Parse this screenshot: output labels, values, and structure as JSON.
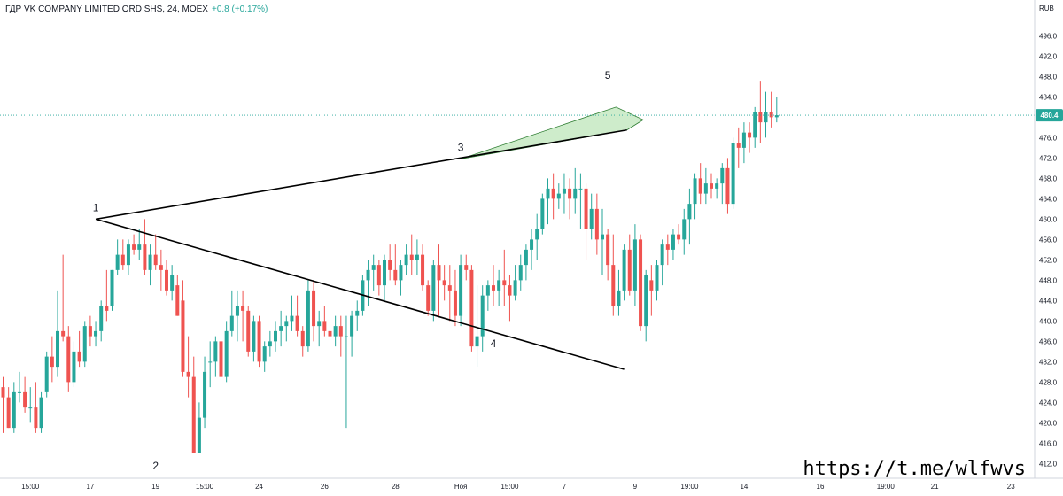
{
  "header": {
    "symbol": "ГДР VK COMPANY LIMITED ORD SHS, 24, MOEX",
    "change": "+0.8 (+0.17%)"
  },
  "watermark": "https://t.me/wlfwvs",
  "colors": {
    "up": "#26a69a",
    "down": "#ef5350",
    "price_line": "#26a69a",
    "triangle_fill": "#b9e4b5",
    "lines": "#000000"
  },
  "chart_data": {
    "type": "candlestick",
    "currency": "RUB",
    "last_price": "480.4",
    "ylim": [
      410.5,
      500.5
    ],
    "y_ticks": [
      "496.0",
      "492.0",
      "488.0",
      "484.0",
      "480.0",
      "476.0",
      "472.0",
      "468.0",
      "464.0",
      "460.0",
      "456.0",
      "452.0",
      "448.0",
      "444.0",
      "440.0",
      "436.0",
      "432.0",
      "428.0",
      "424.0",
      "420.0",
      "416.0",
      "412.0"
    ],
    "x_ticks": [
      {
        "label": "15:00",
        "bar": 5
      },
      {
        "label": "17",
        "bar": 16
      },
      {
        "label": "19",
        "bar": 28
      },
      {
        "label": "15:00",
        "bar": 37
      },
      {
        "label": "24",
        "bar": 47
      },
      {
        "label": "26",
        "bar": 59
      },
      {
        "label": "28",
        "bar": 72
      },
      {
        "label": "Ноя",
        "bar": 84
      },
      {
        "label": "15:00",
        "bar": 93
      },
      {
        "label": "7",
        "bar": 103
      },
      {
        "label": "9",
        "bar": 116
      },
      {
        "label": "19:00",
        "bar": 126
      },
      {
        "label": "14",
        "bar": 136
      },
      {
        "label": "16",
        "bar": 150
      },
      {
        "label": "19:00",
        "bar": 162
      },
      {
        "label": "21",
        "bar": 171
      },
      {
        "label": "23",
        "bar": 185
      }
    ],
    "candles_ohlc": [
      [
        427,
        429,
        418,
        425
      ],
      [
        425,
        427,
        419,
        419
      ],
      [
        419,
        428,
        418,
        426
      ],
      [
        426,
        430,
        424,
        426
      ],
      [
        426,
        429,
        422,
        423
      ],
      [
        423,
        427,
        420,
        423
      ],
      [
        423,
        428,
        418,
        419
      ],
      [
        419,
        426,
        418,
        425
      ],
      [
        426,
        434,
        425,
        433
      ],
      [
        433,
        437,
        428,
        431
      ],
      [
        431,
        446,
        429,
        438
      ],
      [
        438,
        453,
        436,
        437
      ],
      [
        437,
        439,
        426,
        428
      ],
      [
        428,
        436,
        427,
        434
      ],
      [
        434,
        438,
        431,
        432
      ],
      [
        432,
        440,
        431,
        439
      ],
      [
        439,
        441,
        435,
        437
      ],
      [
        437,
        440,
        435,
        438
      ],
      [
        438,
        444,
        436,
        443
      ],
      [
        443,
        450,
        440,
        442
      ],
      [
        443,
        450,
        442,
        450
      ],
      [
        450,
        456,
        449,
        453
      ],
      [
        453,
        456,
        450,
        451
      ],
      [
        451,
        456,
        449,
        455
      ],
      [
        455,
        457,
        453,
        454
      ],
      [
        454,
        458,
        452,
        455
      ],
      [
        455,
        460,
        449,
        450
      ],
      [
        450,
        455,
        447,
        453
      ],
      [
        453,
        457,
        450,
        451
      ],
      [
        451,
        454,
        446,
        450
      ],
      [
        450,
        452,
        445,
        446
      ],
      [
        446,
        451,
        444,
        449
      ],
      [
        447,
        449,
        441,
        441
      ],
      [
        444,
        448,
        429,
        430
      ],
      [
        430,
        437,
        425,
        429
      ],
      [
        429,
        433,
        414,
        414
      ],
      [
        414,
        424,
        414,
        421
      ],
      [
        421,
        433,
        419,
        430
      ],
      [
        432,
        436,
        427,
        432
      ],
      [
        432,
        437,
        429,
        436
      ],
      [
        436,
        438,
        429,
        429
      ],
      [
        429,
        440,
        428,
        438
      ],
      [
        438,
        446,
        437,
        441
      ],
      [
        441,
        446,
        436,
        443
      ],
      [
        443,
        446,
        436,
        442
      ],
      [
        442,
        443,
        433,
        434
      ],
      [
        434,
        441,
        432,
        440
      ],
      [
        440,
        441,
        431,
        432
      ],
      [
        432,
        436,
        430,
        435
      ],
      [
        435,
        438,
        433,
        436
      ],
      [
        436,
        440,
        434,
        438
      ],
      [
        438,
        442,
        435,
        439
      ],
      [
        439,
        441,
        436,
        440
      ],
      [
        440,
        445,
        438,
        441
      ],
      [
        441,
        445,
        437,
        438
      ],
      [
        438,
        439,
        433,
        435
      ],
      [
        435,
        448,
        434,
        446
      ],
      [
        446,
        448,
        436,
        439
      ],
      [
        439,
        442,
        435,
        440
      ],
      [
        440,
        443,
        437,
        438
      ],
      [
        438,
        441,
        436,
        437
      ],
      [
        437,
        441,
        435,
        439
      ],
      [
        439,
        441,
        433,
        437
      ],
      [
        437,
        441,
        419,
        437
      ],
      [
        437,
        442,
        433,
        441
      ],
      [
        441,
        444,
        438,
        442
      ],
      [
        442,
        449,
        441,
        448
      ],
      [
        448,
        452,
        443,
        450
      ],
      [
        450,
        453,
        446,
        451
      ],
      [
        451,
        452,
        445,
        447
      ],
      [
        447,
        453,
        444,
        452
      ],
      [
        452,
        455,
        448,
        450
      ],
      [
        450,
        455,
        447,
        448
      ],
      [
        448,
        452,
        445,
        451
      ],
      [
        451,
        455,
        449,
        453
      ],
      [
        453,
        457,
        449,
        452
      ],
      [
        452,
        456,
        449,
        453
      ],
      [
        453,
        455,
        446,
        447
      ],
      [
        447,
        448,
        441,
        442
      ],
      [
        442,
        452,
        440,
        451
      ],
      [
        451,
        455,
        441,
        448
      ],
      [
        448,
        451,
        444,
        447
      ],
      [
        447,
        451,
        440,
        446
      ],
      [
        446,
        450,
        439,
        441
      ],
      [
        441,
        453,
        439,
        451
      ],
      [
        451,
        453,
        448,
        450
      ],
      [
        450,
        451,
        434,
        435
      ],
      [
        435,
        447,
        431,
        437
      ],
      [
        437,
        447,
        434,
        445
      ],
      [
        445,
        448,
        442,
        447
      ],
      [
        447,
        451,
        443,
        446
      ],
      [
        446,
        450,
        443,
        448
      ],
      [
        448,
        454,
        443,
        447
      ],
      [
        447,
        449,
        440,
        445
      ],
      [
        445,
        451,
        444,
        448
      ],
      [
        448,
        453,
        446,
        451
      ],
      [
        451,
        455,
        448,
        454
      ],
      [
        454,
        458,
        450,
        456
      ],
      [
        456,
        461,
        452,
        458
      ],
      [
        458,
        465,
        457,
        464
      ],
      [
        464,
        468,
        459,
        466
      ],
      [
        466,
        469,
        460,
        464
      ],
      [
        464,
        467,
        462,
        465
      ],
      [
        465,
        469,
        461,
        466
      ],
      [
        466,
        468,
        460,
        464
      ],
      [
        464,
        470,
        461,
        466
      ],
      [
        466,
        469,
        458,
        466
      ],
      [
        466,
        467,
        452,
        458
      ],
      [
        458,
        465,
        456,
        462
      ],
      [
        462,
        465,
        453,
        456
      ],
      [
        456,
        462,
        449,
        457
      ],
      [
        457,
        458,
        448,
        451
      ],
      [
        451,
        457,
        441,
        443
      ],
      [
        443,
        450,
        441,
        446
      ],
      [
        446,
        455,
        444,
        454
      ],
      [
        454,
        457,
        445,
        446
      ],
      [
        446,
        459,
        443,
        456
      ],
      [
        456,
        457,
        438,
        439
      ],
      [
        439,
        450,
        436,
        449
      ],
      [
        448,
        451,
        441,
        446
      ],
      [
        446,
        452,
        444,
        451
      ],
      [
        451,
        456,
        447,
        455
      ],
      [
        455,
        457,
        451,
        454
      ],
      [
        454,
        458,
        452,
        457
      ],
      [
        457,
        459,
        455,
        456
      ],
      [
        456,
        462,
        453,
        460
      ],
      [
        460,
        466,
        455,
        463
      ],
      [
        463,
        469,
        460,
        468
      ],
      [
        468,
        471,
        463,
        465
      ],
      [
        465,
        470,
        463,
        467
      ],
      [
        467,
        469,
        464,
        466
      ],
      [
        466,
        468,
        464,
        467
      ],
      [
        467,
        471,
        463,
        470
      ],
      [
        470,
        472,
        461,
        463
      ],
      [
        463,
        476,
        462,
        475
      ],
      [
        475,
        478,
        470,
        474
      ],
      [
        474,
        479,
        471,
        477
      ],
      [
        477,
        479,
        473,
        476
      ],
      [
        476,
        482,
        474,
        481
      ],
      [
        481,
        487,
        475,
        479
      ],
      [
        479,
        485,
        476,
        481
      ],
      [
        481,
        485,
        478,
        480
      ],
      [
        480,
        484,
        479,
        480.4
      ]
    ],
    "annotations": [
      {
        "label": "1",
        "bar": 17,
        "price": 460.0
      },
      {
        "label": "2",
        "bar": 28,
        "price": 414.0
      },
      {
        "label": "3",
        "bar": 84,
        "price": 471.8
      },
      {
        "label": "4",
        "bar": 90,
        "price": 438.0
      },
      {
        "label": "5",
        "bar": 111,
        "price": 486.0
      }
    ],
    "trend_lines": [
      {
        "name": "upper",
        "from": {
          "bar": 17,
          "price": 460.0
        },
        "to": {
          "bar": 114.5,
          "price": 477.5
        }
      },
      {
        "name": "lower",
        "from": {
          "bar": 17,
          "price": 460.0
        },
        "to": {
          "bar": 114,
          "price": 430.5
        }
      }
    ],
    "target_triangle": [
      {
        "bar": 84,
        "price": 471.8
      },
      {
        "bar": 112.5,
        "price": 482.0
      },
      {
        "bar": 117.5,
        "price": 479.5
      },
      {
        "bar": 114.5,
        "price": 477.5
      }
    ]
  }
}
